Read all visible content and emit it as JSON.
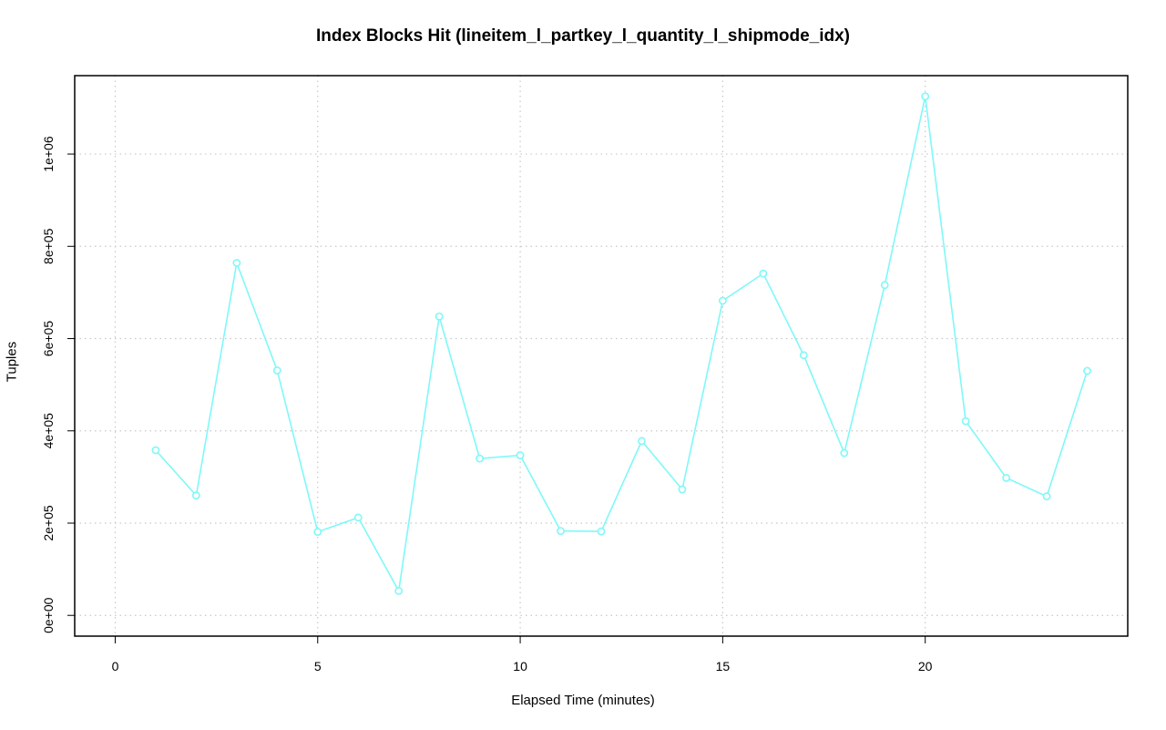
{
  "chart_data": {
    "type": "line",
    "title": "Index Blocks Hit (lineitem_l_partkey_l_quantity_l_shipmode_idx)",
    "xlabel": "Elapsed Time (minutes)",
    "ylabel": "Tuples",
    "xlim": [
      -1,
      25
    ],
    "ylim": [
      -45000,
      1170000
    ],
    "x_ticks": [
      0,
      5,
      10,
      15,
      20
    ],
    "x_tick_labels": [
      "0",
      "5",
      "10",
      "15",
      "20"
    ],
    "y_ticks": [
      0,
      200000,
      400000,
      600000,
      800000,
      1000000
    ],
    "y_tick_labels": [
      "0e+00",
      "2e+05",
      "4e+05",
      "6e+05",
      "8e+05",
      "1e+06"
    ],
    "grid": true,
    "series": [
      {
        "color": "#7ff8f8",
        "x": [
          1,
          2,
          3,
          4,
          5,
          6,
          7,
          8,
          9,
          10,
          11,
          12,
          13,
          14,
          15,
          16,
          17,
          18,
          19,
          20,
          21,
          22,
          23,
          24
        ],
        "y": [
          358000,
          260000,
          764000,
          531000,
          181000,
          212000,
          53000,
          648000,
          340000,
          347000,
          183000,
          182000,
          378000,
          273000,
          682000,
          741000,
          564000,
          352000,
          716000,
          1125000,
          421000,
          298000,
          258000,
          530000
        ]
      }
    ]
  }
}
